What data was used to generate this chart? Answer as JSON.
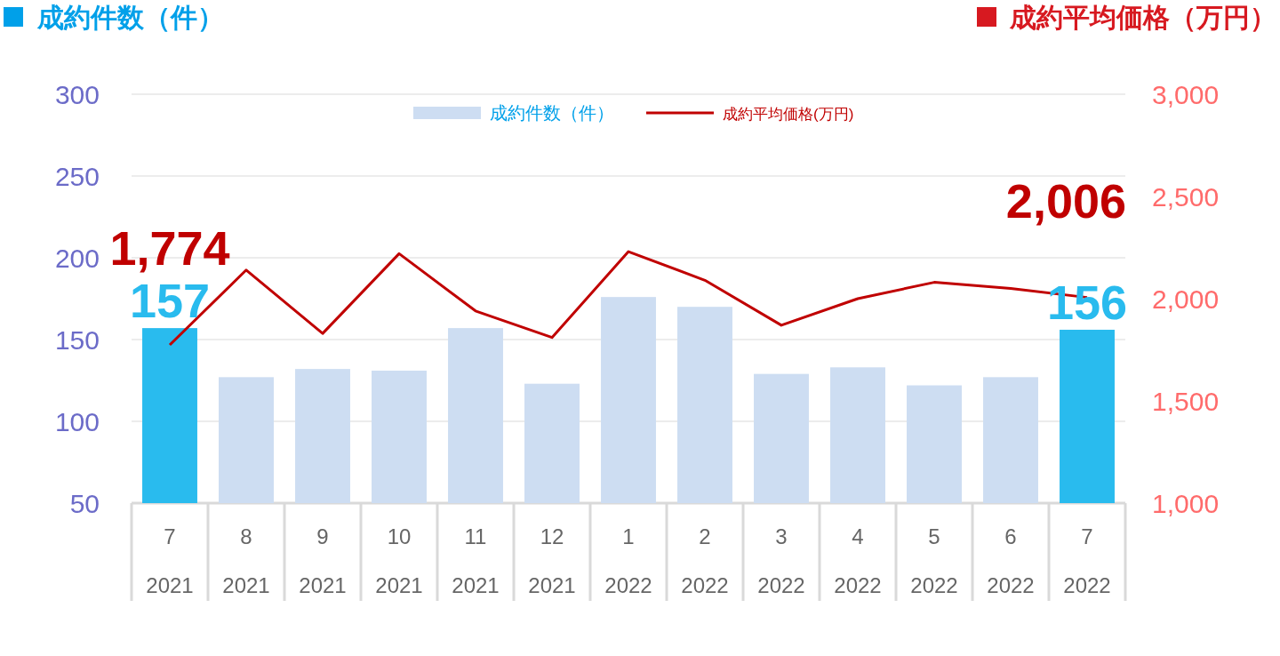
{
  "chart_data": {
    "type": "bar",
    "ylabel": "成約件数（件）",
    "y2label": "成約平均価格（万円）",
    "categories": [
      "7\n2021",
      "8\n2021",
      "9\n2021",
      "10\n2021",
      "11\n2021",
      "12\n2021",
      "1\n2022",
      "2\n2022",
      "3\n2022",
      "4\n2022",
      "5\n2022",
      "6\n2022",
      "7\n2022"
    ],
    "ylim": [
      50,
      300
    ],
    "yticks": [
      50,
      100,
      150,
      200,
      250,
      300
    ],
    "y2lim": [
      1000,
      3000
    ],
    "y2ticks": [
      {
        "value": 1000,
        "label": "1,000"
      },
      {
        "value": 1500,
        "label": "1,500"
      },
      {
        "value": 2000,
        "label": "2,000"
      },
      {
        "value": 2500,
        "label": "2,500"
      },
      {
        "value": 3000,
        "label": "3,000"
      }
    ],
    "grid": "y",
    "legend": "top",
    "series": [
      {
        "name": "成約件数（件）",
        "color": "#cdddf2",
        "colors": [
          "#29bbee",
          "#cdddf2",
          "#cdddf2",
          "#cdddf2",
          "#cdddf2",
          "#cdddf2",
          "#cdddf2",
          "#cdddf2",
          "#cdddf2",
          "#cdddf2",
          "#cdddf2",
          "#cdddf2",
          "#29bbee"
        ],
        "values": [
          157,
          127,
          132,
          131,
          157,
          123,
          176,
          170,
          129,
          133,
          122,
          127,
          156
        ],
        "value_labels": [
          "157",
          null,
          null,
          null,
          null,
          null,
          null,
          null,
          null,
          null,
          null,
          null,
          "156"
        ]
      },
      {
        "name": "成約平均価格(万円)",
        "type": "line",
        "axis": "y2",
        "color": "#c00000",
        "values": [
          1774,
          2140,
          1830,
          2220,
          1940,
          1810,
          2230,
          2090,
          1870,
          2000,
          2080,
          2050,
          2006
        ],
        "value_labels": [
          "1,774",
          null,
          null,
          null,
          null,
          null,
          null,
          null,
          null,
          null,
          null,
          null,
          "2,006"
        ]
      }
    ]
  }
}
